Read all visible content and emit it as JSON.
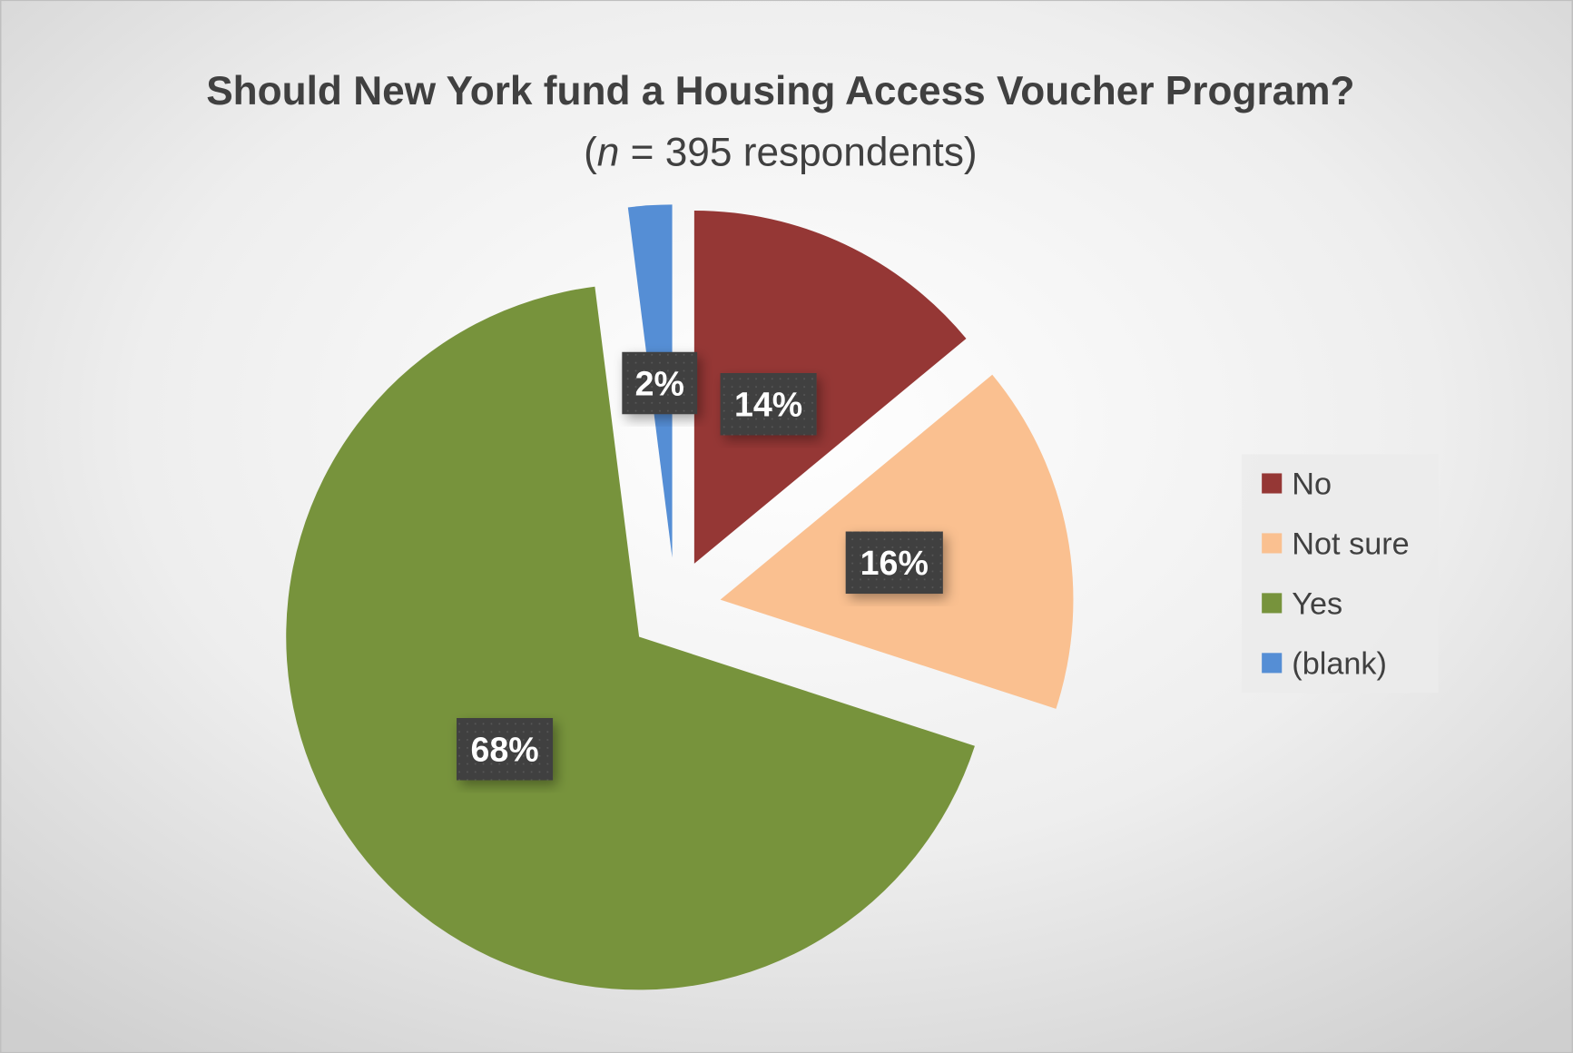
{
  "chart_data": {
    "type": "pie",
    "title": "Should New York fund a Housing Access Voucher Program?",
    "subtitle_prefix": "(",
    "subtitle_n": "n",
    "subtitle_rest": " = 395 respondents)",
    "start_angle": "12 o'clock, clockwise",
    "exploded": true,
    "legend_position": "right",
    "slices": [
      {
        "name": "No",
        "value": 14,
        "label": "14%",
        "color": "#953735"
      },
      {
        "name": "Not sure",
        "value": 16,
        "label": "16%",
        "color": "#FAC090"
      },
      {
        "name": "Yes",
        "value": 68,
        "label": "68%",
        "color": "#77933C"
      },
      {
        "name": "(blank)",
        "value": 2,
        "label": "2%",
        "color": "#558ED5"
      }
    ]
  }
}
